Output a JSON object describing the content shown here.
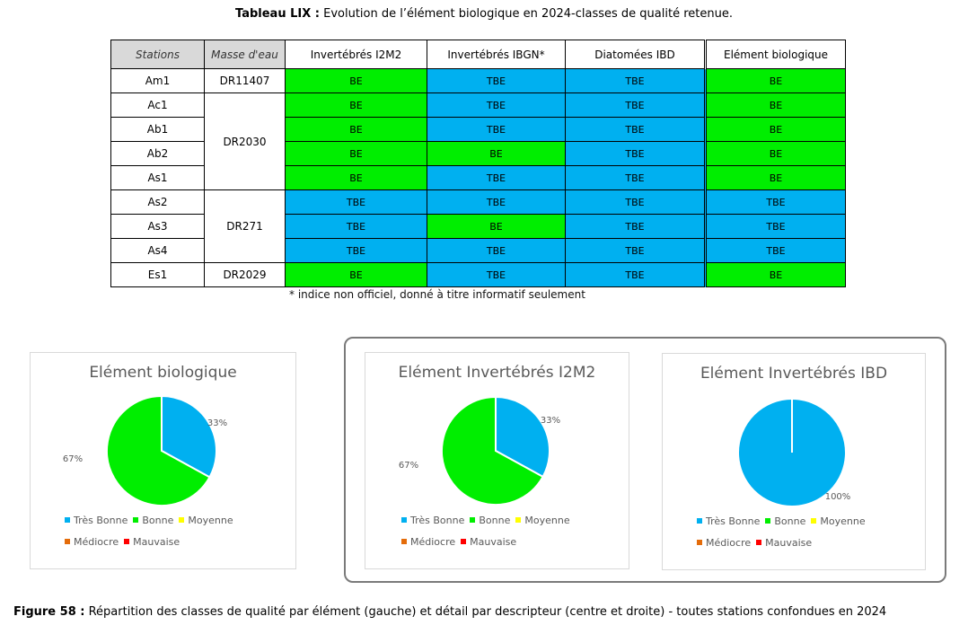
{
  "table_caption": {
    "label": "Tableau LIX :",
    "text": " Evolution de l’élément biologique en 2024-classes de qualité retenue."
  },
  "table": {
    "headers": [
      "Stations",
      "Masse d'eau",
      "Invertébrés I2M2",
      "Invertébrés IBGN*",
      "Diatomées IBD",
      "Elément biologique"
    ],
    "rows": [
      {
        "station": "Am1",
        "masse": "DR11407",
        "span": 1,
        "vals": [
          "BE",
          "TBE",
          "TBE",
          "BE"
        ]
      },
      {
        "station": "Ac1",
        "masse": "DR2030",
        "span": 4,
        "vals": [
          "BE",
          "TBE",
          "TBE",
          "BE"
        ]
      },
      {
        "station": "Ab1",
        "masse": null,
        "span": 0,
        "vals": [
          "BE",
          "TBE",
          "TBE",
          "BE"
        ]
      },
      {
        "station": "Ab2",
        "masse": null,
        "span": 0,
        "vals": [
          "BE",
          "BE",
          "TBE",
          "BE"
        ]
      },
      {
        "station": "As1",
        "masse": null,
        "span": 0,
        "vals": [
          "BE",
          "TBE",
          "TBE",
          "BE"
        ]
      },
      {
        "station": "As2",
        "masse": "DR271",
        "span": 3,
        "vals": [
          "TBE",
          "TBE",
          "TBE",
          "TBE"
        ]
      },
      {
        "station": "As3",
        "masse": null,
        "span": 0,
        "vals": [
          "TBE",
          "BE",
          "TBE",
          "TBE"
        ]
      },
      {
        "station": "As4",
        "masse": null,
        "span": 0,
        "vals": [
          "TBE",
          "TBE",
          "TBE",
          "TBE"
        ]
      },
      {
        "station": "Es1",
        "masse": "DR2029",
        "span": 1,
        "vals": [
          "BE",
          "TBE",
          "TBE",
          "BE"
        ]
      }
    ],
    "colors": {
      "BE": "#00ee00",
      "TBE": "#00b0f0"
    }
  },
  "footnote": "* indice non officiel, donné à titre informatif seulement",
  "legend_labels": [
    "Très Bonne",
    "Bonne",
    "Moyenne",
    "Médiocre",
    "Mauvaise"
  ],
  "legend_colors": [
    "#00b0f0",
    "#00ee00",
    "#ffff00",
    "#e46c0a",
    "#ff0000"
  ],
  "chart_data": [
    {
      "type": "pie",
      "title": "Elément biologique",
      "categories": [
        "Très Bonne",
        "Bonne",
        "Moyenne",
        "Médiocre",
        "Mauvaise"
      ],
      "values": [
        33,
        67,
        0,
        0,
        0
      ],
      "labels": [
        "33%",
        "67%"
      ]
    },
    {
      "type": "pie",
      "title": "Elément Invertébrés I2M2",
      "categories": [
        "Très Bonne",
        "Bonne",
        "Moyenne",
        "Médiocre",
        "Mauvaise"
      ],
      "values": [
        33,
        67,
        0,
        0,
        0
      ],
      "labels": [
        "33%",
        "67%"
      ]
    },
    {
      "type": "pie",
      "title": "Elément Invertébrés IBD",
      "categories": [
        "Très Bonne",
        "Bonne",
        "Moyenne",
        "Médiocre",
        "Mauvaise"
      ],
      "values": [
        100,
        0,
        0,
        0,
        0
      ],
      "labels": [
        "100%"
      ]
    }
  ],
  "figure_caption": {
    "label": "Figure 58 :",
    "text": "  Répartition des classes de qualité par élément (gauche) et détail par descripteur (centre et droite) - toutes stations confondues en 2024"
  }
}
